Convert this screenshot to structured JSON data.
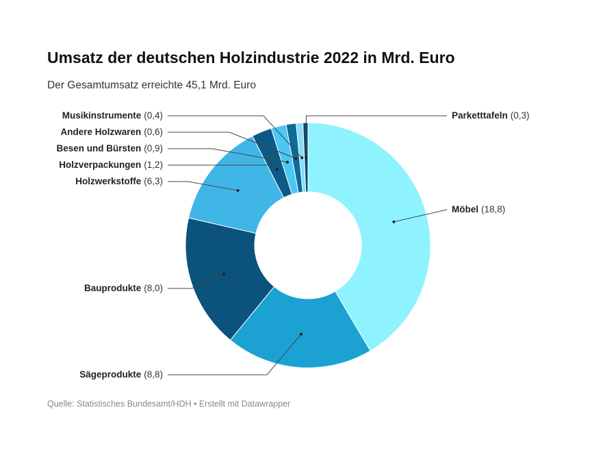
{
  "chart_data": {
    "type": "donut",
    "title": "Umsatz der deutschen Holzindustrie 2022 in Mrd. Euro",
    "subtitle": "Der Gesamtumsatz erreichte 45,1 Mrd. Euro",
    "source": "Quelle: Statistisches Bundesamt/HDH • Erstellt mit Datawrapper",
    "categories": [
      "Möbel",
      "Sägeprodukte",
      "Bauprodukte",
      "Holzwerkstoffe",
      "Holzverpackungen",
      "Besen und Bürsten",
      "Andere Holzwaren",
      "Musikinstrumente",
      "Parketttafeln"
    ],
    "values": [
      18.8,
      8.8,
      8.0,
      6.3,
      1.2,
      0.9,
      0.6,
      0.4,
      0.3
    ],
    "value_labels": [
      "(18,8)",
      "(8,8)",
      "(8,0)",
      "(6,3)",
      "(1,2)",
      "(0,9)",
      "(0,6)",
      "(0,4)",
      "(0,3)"
    ],
    "colors": [
      "#8ef3ff",
      "#1ba2d3",
      "#0b537c",
      "#40b6e6",
      "#0b5a83",
      "#4cc6f2",
      "#0d6b98",
      "#86ddf8",
      "#0a4a6f"
    ]
  }
}
